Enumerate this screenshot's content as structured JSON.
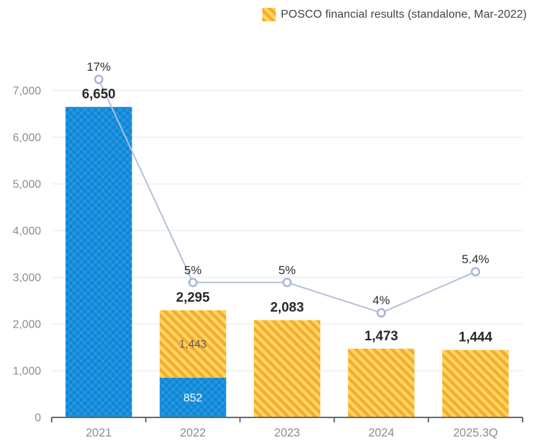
{
  "legend": {
    "label": "POSCO financial results (standalone, Mar-2022)",
    "swatch_icon": "yellow-diagonal-stripe-swatch"
  },
  "colors": {
    "blue": "#209BE8",
    "blue_dot": "#1685D1",
    "yellow_light": "#FFD755",
    "yellow_stripe": "#F4A93C",
    "line": "#B3BFDB",
    "marker_stroke": "#A9B7D6",
    "marker_fill": "#FFFFFF",
    "grid": "#E7E9EF",
    "axis": "#66686D",
    "label_dark": "#26282B",
    "pct_label": "#2B2D30",
    "axis_text": "#8B8B93",
    "inbar_yellow_text": "#5A5C5E",
    "inbar_blue_text": "#FFFFFF"
  },
  "chart_data": {
    "type": "bar",
    "subtype": "stacked-bar-with-percent-line",
    "title": "",
    "xlabel": "",
    "ylabel": "",
    "categories": [
      "2021",
      "2022",
      "2023",
      "2024",
      "2025.3Q"
    ],
    "series": [
      {
        "name": "blue-dotted-bar-segment",
        "type": "bar",
        "pattern": "blue-dot",
        "values": [
          6650,
          852,
          0,
          0,
          0
        ]
      },
      {
        "name": "POSCO financial results (standalone, Mar-2022)",
        "type": "bar",
        "pattern": "yellow-stripe",
        "values": [
          0,
          1443,
          2083,
          1473,
          1444
        ]
      },
      {
        "name": "percent-line",
        "type": "line",
        "values": [
          17,
          5,
          5,
          4,
          5.4
        ],
        "labels": [
          "17%",
          "5%",
          "5%",
          "4%",
          "5.4%"
        ]
      }
    ],
    "segment_labels": [
      [
        null,
        null
      ],
      [
        "852",
        "1,443"
      ],
      [
        null,
        null
      ],
      [
        null,
        null
      ],
      [
        null,
        null
      ]
    ],
    "total_labels": [
      "6,650",
      "2,295",
      "2,083",
      "1,473",
      "1,444"
    ],
    "y_axis": {
      "ticks": [
        "0",
        "1,000",
        "2,000",
        "3,000",
        "4,000",
        "5,000",
        "6,000",
        "7,000"
      ],
      "tick_values": [
        0,
        1000,
        2000,
        3000,
        4000,
        5000,
        6000,
        7000
      ],
      "range": [
        0,
        7000
      ]
    },
    "line_marker_axis_pos": [
      7240,
      2890,
      2890,
      2240,
      3120
    ],
    "grid": true,
    "legend_position": "top-right"
  }
}
